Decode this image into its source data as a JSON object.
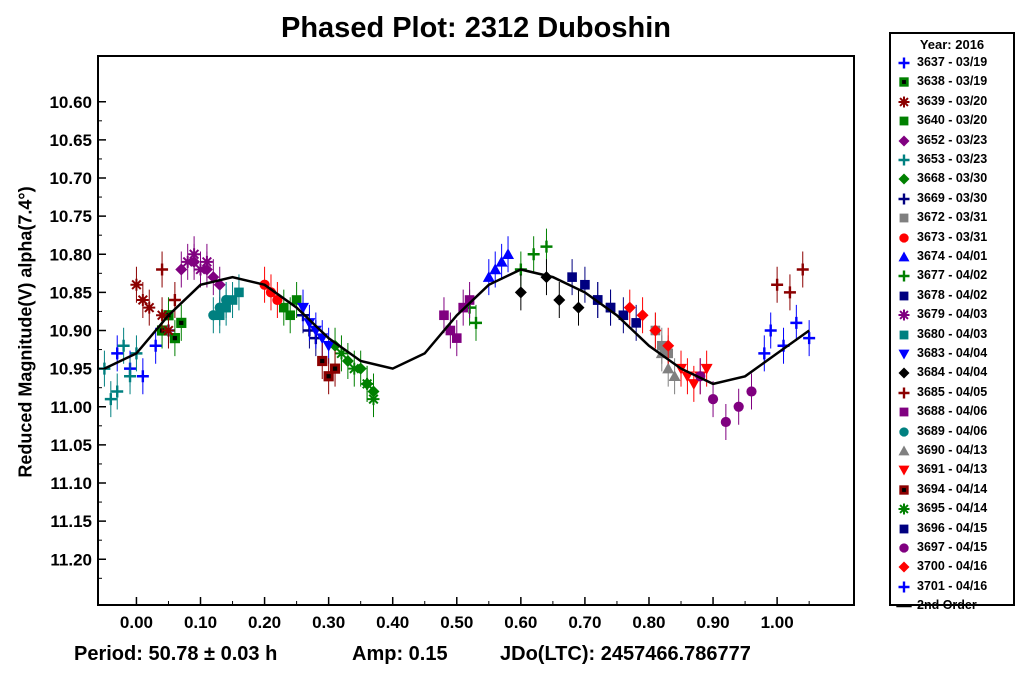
{
  "chart_data": {
    "type": "scatter",
    "title": "Phased Plot: 2312 Duboshin",
    "ylabel": "Reduced Magnitude(V) alpha(7.4°)",
    "xlabel": "",
    "xlim": [
      -0.06,
      1.12
    ],
    "ylim": [
      11.26,
      10.54
    ],
    "y_inverted": true,
    "x_ticks": [
      "0.00",
      "0.10",
      "0.20",
      "0.30",
      "0.40",
      "0.50",
      "0.60",
      "0.70",
      "0.80",
      "0.90",
      "1.00"
    ],
    "y_ticks": [
      "10.60",
      "10.65",
      "10.70",
      "10.75",
      "10.80",
      "10.85",
      "10.90",
      "10.95",
      "11.00",
      "11.05",
      "11.10",
      "11.15",
      "11.20"
    ],
    "grid": false,
    "legend_placement": "right-outside",
    "legend_title": "Year: 2016",
    "series": [
      {
        "name": "3637 - 03/19",
        "marker": "plus",
        "color": "#0000ff",
        "x": [
          -0.03,
          -0.01,
          0.01,
          0.03,
          0.05
        ],
        "y": [
          10.93,
          10.95,
          10.96,
          10.92,
          10.9
        ]
      },
      {
        "name": "3638 - 03/19",
        "marker": "square-dot",
        "color": "#008000",
        "x": [
          0.04,
          0.05,
          0.06,
          0.07
        ],
        "y": [
          10.9,
          10.88,
          10.91,
          10.89
        ]
      },
      {
        "name": "3639 - 03/20",
        "marker": "star",
        "color": "#8b0000",
        "x": [
          0.0,
          0.01,
          0.02,
          0.04,
          0.05
        ],
        "y": [
          10.84,
          10.86,
          10.87,
          10.88,
          10.9
        ]
      },
      {
        "name": "3640 - 03/20",
        "marker": "square",
        "color": "#008000",
        "x": [
          0.23,
          0.24,
          0.25
        ],
        "y": [
          10.87,
          10.88,
          10.86
        ]
      },
      {
        "name": "3652 - 03/23",
        "marker": "diamond",
        "color": "#800080",
        "x": [
          0.07,
          0.09,
          0.11,
          0.12,
          0.13
        ],
        "y": [
          10.82,
          10.81,
          10.82,
          10.83,
          10.84
        ]
      },
      {
        "name": "3653 - 03/23",
        "marker": "plus",
        "color": "#008080",
        "x": [
          -0.05,
          -0.04,
          -0.03,
          -0.02,
          -0.01,
          0.0
        ],
        "y": [
          10.95,
          10.99,
          10.98,
          10.92,
          10.96,
          10.93
        ]
      },
      {
        "name": "3668 - 03/30",
        "marker": "diamond",
        "color": "#008000",
        "x": [
          0.31,
          0.33,
          0.35,
          0.36,
          0.37
        ],
        "y": [
          10.92,
          10.94,
          10.95,
          10.97,
          10.98
        ]
      },
      {
        "name": "3669 - 03/30",
        "marker": "plus",
        "color": "#000080",
        "x": [
          0.26,
          0.27,
          0.28
        ],
        "y": [
          10.88,
          10.9,
          10.91
        ]
      },
      {
        "name": "3672 - 03/31",
        "marker": "square",
        "color": "#808080",
        "x": [
          0.81,
          0.82,
          0.83
        ],
        "y": [
          10.9,
          10.92,
          10.93
        ]
      },
      {
        "name": "3673 - 03/31",
        "marker": "circle",
        "color": "#ff0000",
        "x": [
          0.2,
          0.21,
          0.22
        ],
        "y": [
          10.84,
          10.85,
          10.86
        ]
      },
      {
        "name": "3674 - 04/01",
        "marker": "triangle",
        "color": "#0000ff",
        "x": [
          0.55,
          0.56,
          0.57,
          0.58
        ],
        "y": [
          10.83,
          10.82,
          10.81,
          10.8
        ]
      },
      {
        "name": "3677 - 04/02",
        "marker": "plus",
        "color": "#008000",
        "x": [
          0.52,
          0.53,
          0.6,
          0.62,
          0.64
        ],
        "y": [
          10.87,
          10.89,
          10.82,
          10.8,
          10.79
        ]
      },
      {
        "name": "3678 - 04/02",
        "marker": "square",
        "color": "#000080",
        "x": [
          0.68,
          0.7,
          0.72,
          0.74
        ],
        "y": [
          10.83,
          10.84,
          10.86,
          10.87
        ]
      },
      {
        "name": "3679 - 04/03",
        "marker": "star",
        "color": "#800080",
        "x": [
          0.08,
          0.09,
          0.1,
          0.11
        ],
        "y": [
          10.81,
          10.8,
          10.82,
          10.81
        ]
      },
      {
        "name": "3680 - 04/03",
        "marker": "square",
        "color": "#008080",
        "x": [
          0.13,
          0.14,
          0.15,
          0.16
        ],
        "y": [
          10.88,
          10.87,
          10.86,
          10.85
        ]
      },
      {
        "name": "3683 - 04/04",
        "marker": "triangle-down",
        "color": "#0000ff",
        "x": [
          0.26,
          0.27,
          0.28,
          0.29,
          0.3
        ],
        "y": [
          10.87,
          10.89,
          10.9,
          10.91,
          10.92
        ]
      },
      {
        "name": "3684 - 04/04",
        "marker": "diamond",
        "color": "#000000",
        "x": [
          0.6,
          0.64,
          0.66,
          0.69
        ],
        "y": [
          10.85,
          10.83,
          10.86,
          10.87
        ]
      },
      {
        "name": "3685 - 04/05",
        "marker": "plus",
        "color": "#8b0000",
        "x": [
          0.04,
          0.06,
          1.0,
          1.02,
          1.04
        ],
        "y": [
          10.82,
          10.86,
          10.84,
          10.85,
          10.82
        ]
      },
      {
        "name": "3688 - 04/06",
        "marker": "square",
        "color": "#800080",
        "x": [
          0.48,
          0.49,
          0.5,
          0.51,
          0.52
        ],
        "y": [
          10.88,
          10.9,
          10.91,
          10.87,
          10.86
        ]
      },
      {
        "name": "3689 - 04/06",
        "marker": "circle",
        "color": "#008080",
        "x": [
          0.12,
          0.13,
          0.14
        ],
        "y": [
          10.88,
          10.87,
          10.86
        ]
      },
      {
        "name": "3690 - 04/13",
        "marker": "triangle",
        "color": "#808080",
        "x": [
          0.82,
          0.83,
          0.84
        ],
        "y": [
          10.93,
          10.95,
          10.96
        ]
      },
      {
        "name": "3691 - 04/13",
        "marker": "triangle-down",
        "color": "#ff0000",
        "x": [
          0.85,
          0.86,
          0.87,
          0.88,
          0.89
        ],
        "y": [
          10.95,
          10.96,
          10.97,
          10.96,
          10.95
        ]
      },
      {
        "name": "3694 - 04/14",
        "marker": "square-dot",
        "color": "#8b0000",
        "x": [
          0.29,
          0.3,
          0.31
        ],
        "y": [
          10.94,
          10.96,
          10.95
        ]
      },
      {
        "name": "3695 - 04/14",
        "marker": "star",
        "color": "#008000",
        "x": [
          0.32,
          0.34,
          0.36,
          0.37
        ],
        "y": [
          10.93,
          10.95,
          10.97,
          10.99
        ]
      },
      {
        "name": "3696 - 04/15",
        "marker": "square",
        "color": "#000080",
        "x": [
          0.72,
          0.74,
          0.76,
          0.78
        ],
        "y": [
          10.86,
          10.87,
          10.88,
          10.89
        ]
      },
      {
        "name": "3697 - 04/15",
        "marker": "circle",
        "color": "#800080",
        "x": [
          0.88,
          0.9,
          0.92,
          0.94,
          0.96
        ],
        "y": [
          10.96,
          10.99,
          11.02,
          11.0,
          10.98
        ]
      },
      {
        "name": "3700 - 04/16",
        "marker": "diamond",
        "color": "#ff0000",
        "x": [
          0.77,
          0.79,
          0.81,
          0.83
        ],
        "y": [
          10.87,
          10.88,
          10.9,
          10.92
        ]
      },
      {
        "name": "3701 - 04/16",
        "marker": "plus",
        "color": "#0000ff",
        "x": [
          0.98,
          0.99,
          1.01,
          1.03,
          1.05
        ],
        "y": [
          10.93,
          10.9,
          10.92,
          10.89,
          10.91
        ]
      },
      {
        "name": "2nd Order",
        "marker": "line",
        "color": "#000000",
        "x": [
          -0.05,
          0.0,
          0.05,
          0.1,
          0.15,
          0.2,
          0.25,
          0.3,
          0.35,
          0.4,
          0.45,
          0.5,
          0.55,
          0.6,
          0.65,
          0.7,
          0.75,
          0.8,
          0.85,
          0.9,
          0.95,
          1.0,
          1.05
        ],
        "y": [
          10.95,
          10.93,
          10.88,
          10.84,
          10.83,
          10.84,
          10.87,
          10.91,
          10.94,
          10.95,
          10.93,
          10.88,
          10.84,
          10.82,
          10.83,
          10.85,
          10.88,
          10.92,
          10.95,
          10.97,
          10.96,
          10.93,
          10.9
        ]
      }
    ]
  },
  "footer": {
    "period": "Period: 50.78 ± 0.03 h",
    "amp": "Amp: 0.15",
    "jdo": "JDo(LTC): 2457466.786777"
  }
}
